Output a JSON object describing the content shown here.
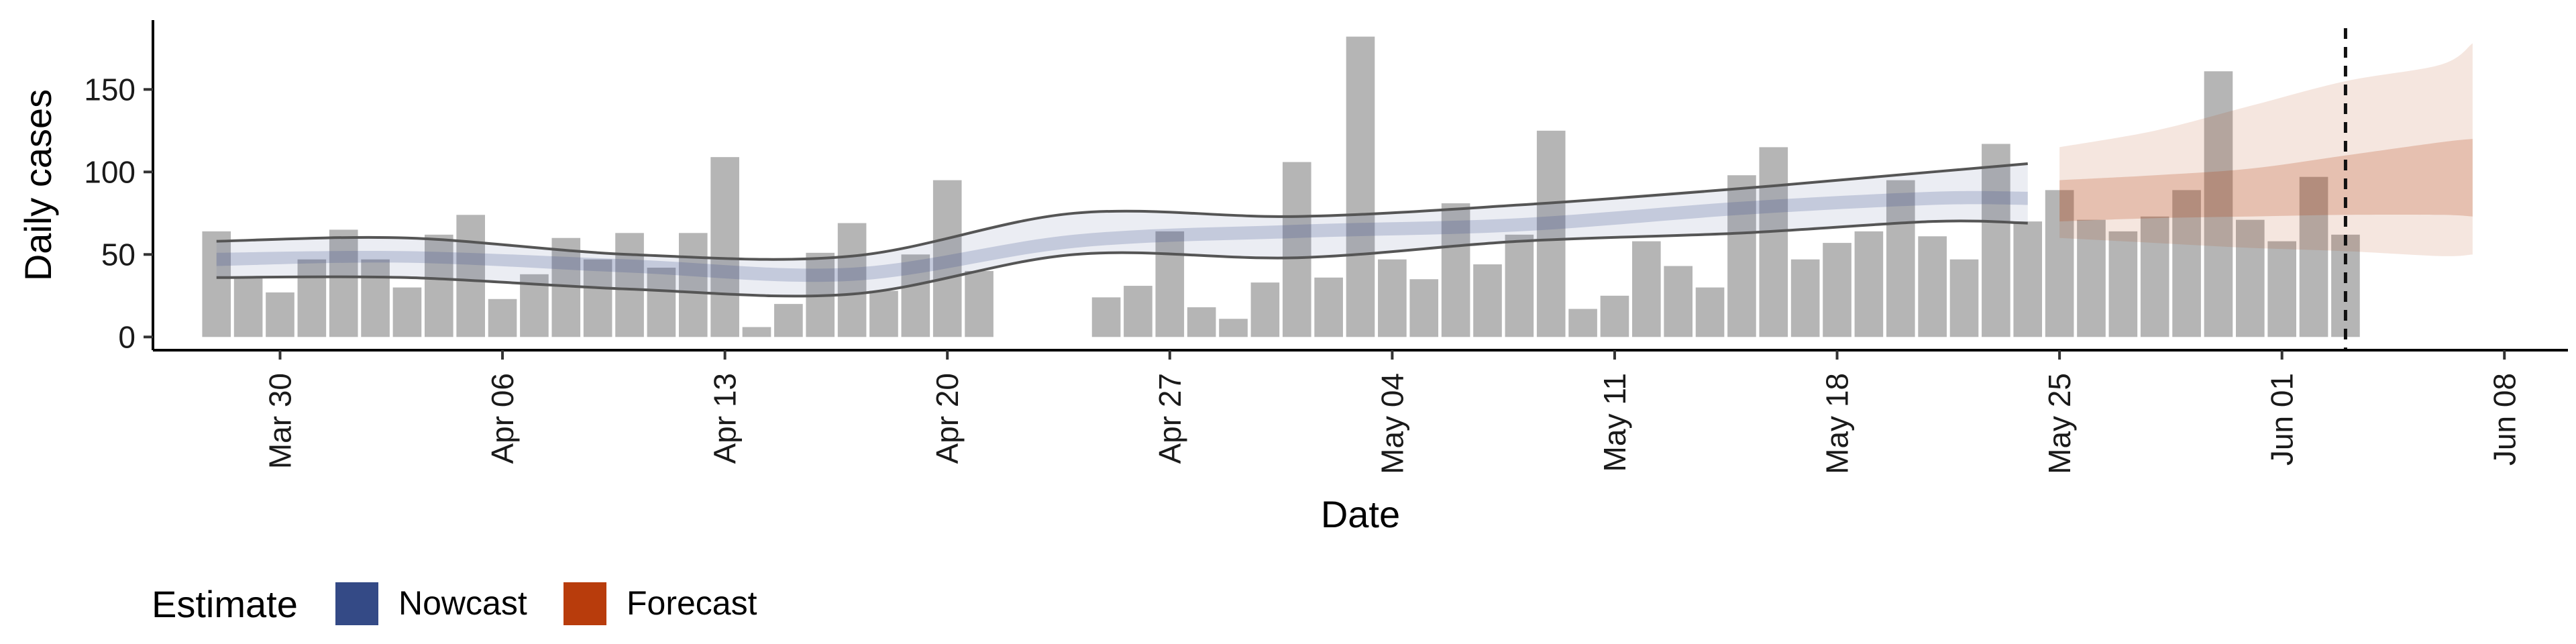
{
  "chart_data": {
    "type": "bar",
    "xlabel": "Date",
    "ylabel": "Daily cases",
    "ylim": [
      -8,
      192
    ],
    "yticks": [
      0,
      50,
      100,
      150
    ],
    "xlim": [
      "2020-03-26",
      "2020-06-10"
    ],
    "xticks": [
      {
        "date": "2020-03-30",
        "label": "Mar 30"
      },
      {
        "date": "2020-04-06",
        "label": "Apr 06"
      },
      {
        "date": "2020-04-13",
        "label": "Apr 13"
      },
      {
        "date": "2020-04-20",
        "label": "Apr 20"
      },
      {
        "date": "2020-04-27",
        "label": "Apr 27"
      },
      {
        "date": "2020-05-04",
        "label": "May 04"
      },
      {
        "date": "2020-05-11",
        "label": "May 11"
      },
      {
        "date": "2020-05-18",
        "label": "May 18"
      },
      {
        "date": "2020-05-25",
        "label": "May 25"
      },
      {
        "date": "2020-06-01",
        "label": "Jun 01"
      },
      {
        "date": "2020-06-08",
        "label": "Jun 08"
      }
    ],
    "daily_cases": {
      "start_date": "2020-03-28",
      "values": [
        64,
        36,
        27,
        47,
        65,
        47,
        30,
        62,
        74,
        23,
        38,
        60,
        47,
        63,
        42,
        63,
        109,
        6,
        20,
        51,
        69,
        28,
        50,
        95,
        40,
        null,
        null,
        null,
        24,
        31,
        64,
        18,
        11,
        33,
        106,
        36,
        182,
        47,
        35,
        81,
        44,
        62,
        125,
        17,
        25,
        58,
        43,
        30,
        98,
        115,
        47,
        57,
        64,
        95,
        61,
        47,
        117,
        70,
        89,
        71,
        64,
        73,
        89,
        161,
        71,
        58,
        97,
        62
      ]
    },
    "vertical_line_date": "2020-06-03",
    "series": [
      {
        "name": "Nowcast",
        "color": "#3B4F8C",
        "x": [
          "2020-03-28",
          "2020-04-03",
          "2020-04-10",
          "2020-04-17",
          "2020-04-24",
          "2020-05-01",
          "2020-05-08",
          "2020-05-15",
          "2020-05-21",
          "2020-05-24"
        ],
        "median": [
          47,
          48,
          43,
          38,
          58,
          64,
          68,
          78,
          84,
          84
        ],
        "inner_lower": [
          43,
          45,
          39,
          34,
          54,
          60,
          64,
          74,
          80,
          80
        ],
        "inner_upper": [
          51,
          52,
          47,
          42,
          62,
          68,
          72,
          82,
          88,
          88
        ],
        "lower": [
          36,
          36,
          29,
          26,
          50,
          48,
          58,
          63,
          70,
          69
        ],
        "upper": [
          58,
          60,
          50,
          49,
          75,
          73,
          80,
          90,
          100,
          105
        ]
      },
      {
        "name": "Forecast",
        "color": "#B23A0A",
        "x": [
          "2020-05-25",
          "2020-05-28",
          "2020-05-31",
          "2020-06-03",
          "2020-06-06",
          "2020-06-07"
        ],
        "inner_lower": [
          70,
          72,
          73,
          74,
          74,
          73
        ],
        "inner_upper": [
          95,
          98,
          102,
          110,
          118,
          120
        ],
        "lower": [
          60,
          57,
          54,
          52,
          49,
          50
        ],
        "upper": [
          115,
          125,
          140,
          155,
          165,
          178
        ]
      }
    ],
    "legend": {
      "title": "Estimate",
      "position": "bottom-left",
      "items": [
        {
          "label": "Nowcast",
          "color": "#344A86"
        },
        {
          "label": "Forecast",
          "color": "#B83C0C"
        }
      ]
    }
  }
}
